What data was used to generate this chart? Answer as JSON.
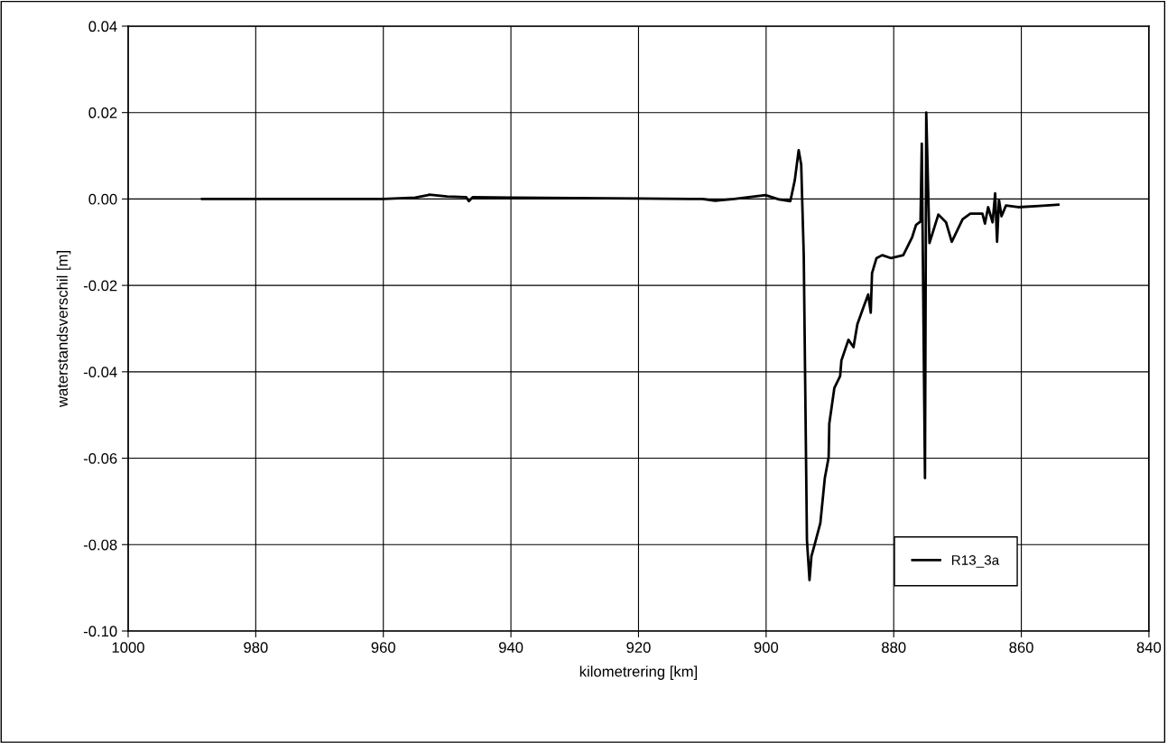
{
  "chart_data": {
    "type": "line",
    "xlabel": "kilometrering [km]",
    "ylabel": "waterstandsverschil [m]",
    "xlim": [
      1000,
      840
    ],
    "ylim": [
      -0.1,
      0.04
    ],
    "xticks": [
      1000,
      980,
      960,
      940,
      920,
      900,
      880,
      860,
      840
    ],
    "yticks": [
      {
        "value": 0.04,
        "label": "0.04"
      },
      {
        "value": 0.02,
        "label": "0.02"
      },
      {
        "value": 0.0,
        "label": "0.00"
      },
      {
        "value": -0.02,
        "label": "-0.02"
      },
      {
        "value": -0.04,
        "label": "-0.04"
      },
      {
        "value": -0.06,
        "label": "-0.06"
      },
      {
        "value": -0.08,
        "label": "-0.08"
      },
      {
        "value": -0.1,
        "label": "-0.10"
      }
    ],
    "grid": true,
    "legend": "bottom right",
    "marker": "none",
    "line_style": "solid",
    "series": [
      {
        "name": "R13_3a",
        "color": "#000000",
        "x": [
          988.4,
          980,
          970,
          960,
          955,
          953,
          952.8,
          950,
          947,
          946.6,
          946,
          940,
          930,
          920,
          910,
          908,
          905,
          900.1,
          898,
          896.2,
          895.5,
          894.9,
          894.5,
          894.1,
          893.6,
          893.2,
          892.9,
          892.4,
          891.5,
          890.8,
          890.2,
          890.1,
          889.3,
          888.4,
          888.2,
          887.1,
          886.3,
          885.7,
          884.7,
          884.0,
          883.6,
          883.4,
          882.7,
          881.8,
          880.4,
          878.5,
          877.1,
          876.5,
          875.8,
          875.6,
          875.1,
          874.9,
          874.4,
          873.0,
          871.8,
          870.9,
          869.2,
          868.0,
          866.1,
          865.7,
          865.2,
          864.5,
          864.1,
          863.8,
          863.5,
          863.1,
          862.4,
          860.5,
          857.2,
          854.2
        ],
        "values": [
          0.0,
          0.0,
          0.0,
          0.0,
          0.0003,
          0.0009,
          0.001,
          0.0006,
          0.0004,
          -0.0005,
          0.0004,
          0.0003,
          0.0002,
          0.0001,
          0.0,
          -0.0004,
          0.0,
          0.0009,
          -0.0001,
          -0.0005,
          0.0044,
          0.0113,
          0.0079,
          -0.013,
          -0.079,
          -0.0882,
          -0.0827,
          -0.08,
          -0.075,
          -0.0646,
          -0.0598,
          -0.052,
          -0.0437,
          -0.041,
          -0.0374,
          -0.0326,
          -0.0343,
          -0.029,
          -0.0249,
          -0.0221,
          -0.0263,
          -0.0172,
          -0.0137,
          -0.013,
          -0.0137,
          -0.013,
          -0.0088,
          -0.006,
          -0.0052,
          0.0128,
          -0.0646,
          0.02,
          -0.0102,
          -0.0036,
          -0.0054,
          -0.0099,
          -0.0047,
          -0.0034,
          -0.0034,
          -0.0057,
          -0.0019,
          -0.0054,
          0.0013,
          -0.0099,
          -0.0002,
          -0.004,
          -0.0015,
          -0.0019,
          -0.0016,
          -0.0013
        ]
      }
    ]
  }
}
